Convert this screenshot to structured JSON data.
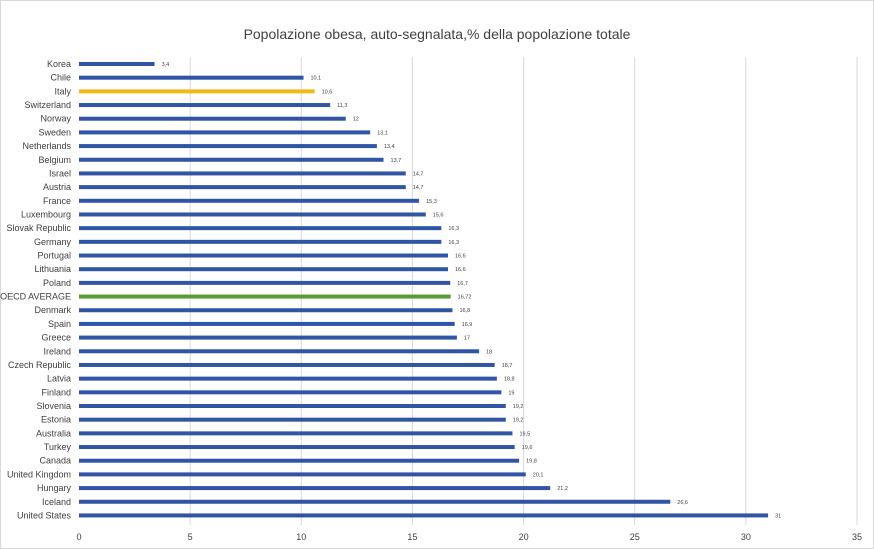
{
  "chart_data": {
    "type": "bar",
    "orientation": "horizontal",
    "title": "Popolazione obesa, auto-segnalata,% della popolazione totale",
    "categories": [
      "Korea",
      "Chile",
      "Italy",
      "Switzerland",
      "Norway",
      "Sweden",
      "Netherlands",
      "Belgium",
      "Israel",
      "Austria",
      "France",
      "Luxembourg",
      "Slovak Republic",
      "Germany",
      "Portugal",
      "Lithuania",
      "Poland",
      "OECD AVERAGE",
      "Denmark",
      "Spain",
      "Greece",
      "Ireland",
      "Czech Republic",
      "Latvia",
      "Finland",
      "Slovenia",
      "Estonia",
      "Australia",
      "Turkey",
      "Canada",
      "United Kingdom",
      "Hungary",
      "Iceland",
      "United States"
    ],
    "values": [
      3.4,
      10.1,
      10.6,
      11.3,
      12,
      13.1,
      13.4,
      13.7,
      14.7,
      14.7,
      15.3,
      15.6,
      16.3,
      16.3,
      16.6,
      16.6,
      16.7,
      16.72,
      16.8,
      16.9,
      17,
      18,
      18.7,
      18.8,
      19,
      19.2,
      19.2,
      19.5,
      19.6,
      19.8,
      20.1,
      21.2,
      26.6,
      31
    ],
    "value_labels": [
      "3,4",
      "10,1",
      "10,6",
      "11,3",
      "12",
      "13,1",
      "13,4",
      "13,7",
      "14,7",
      "14,7",
      "15,3",
      "15,6",
      "16,3",
      "16,3",
      "16,6",
      "16,6",
      "16,7",
      "16,72",
      "16,8",
      "16,9",
      "17",
      "18",
      "18,7",
      "18,8",
      "19",
      "19,2",
      "19,2",
      "19,5",
      "19,6",
      "19,8",
      "20,1",
      "21,2",
      "26,6",
      "31"
    ],
    "xlim": [
      0,
      35
    ],
    "xticks": [
      0,
      5,
      10,
      15,
      20,
      25,
      30,
      35
    ],
    "grid": true,
    "legend": "none",
    "colors": {
      "default": "#2f55a4",
      "highlight_italy": "#f5b619",
      "highlight_average": "#5a9a33",
      "grid": "#d9d9d9",
      "text": "#404040"
    },
    "highlights": {
      "Italy": "highlight_italy",
      "OECD AVERAGE": "highlight_average"
    }
  }
}
